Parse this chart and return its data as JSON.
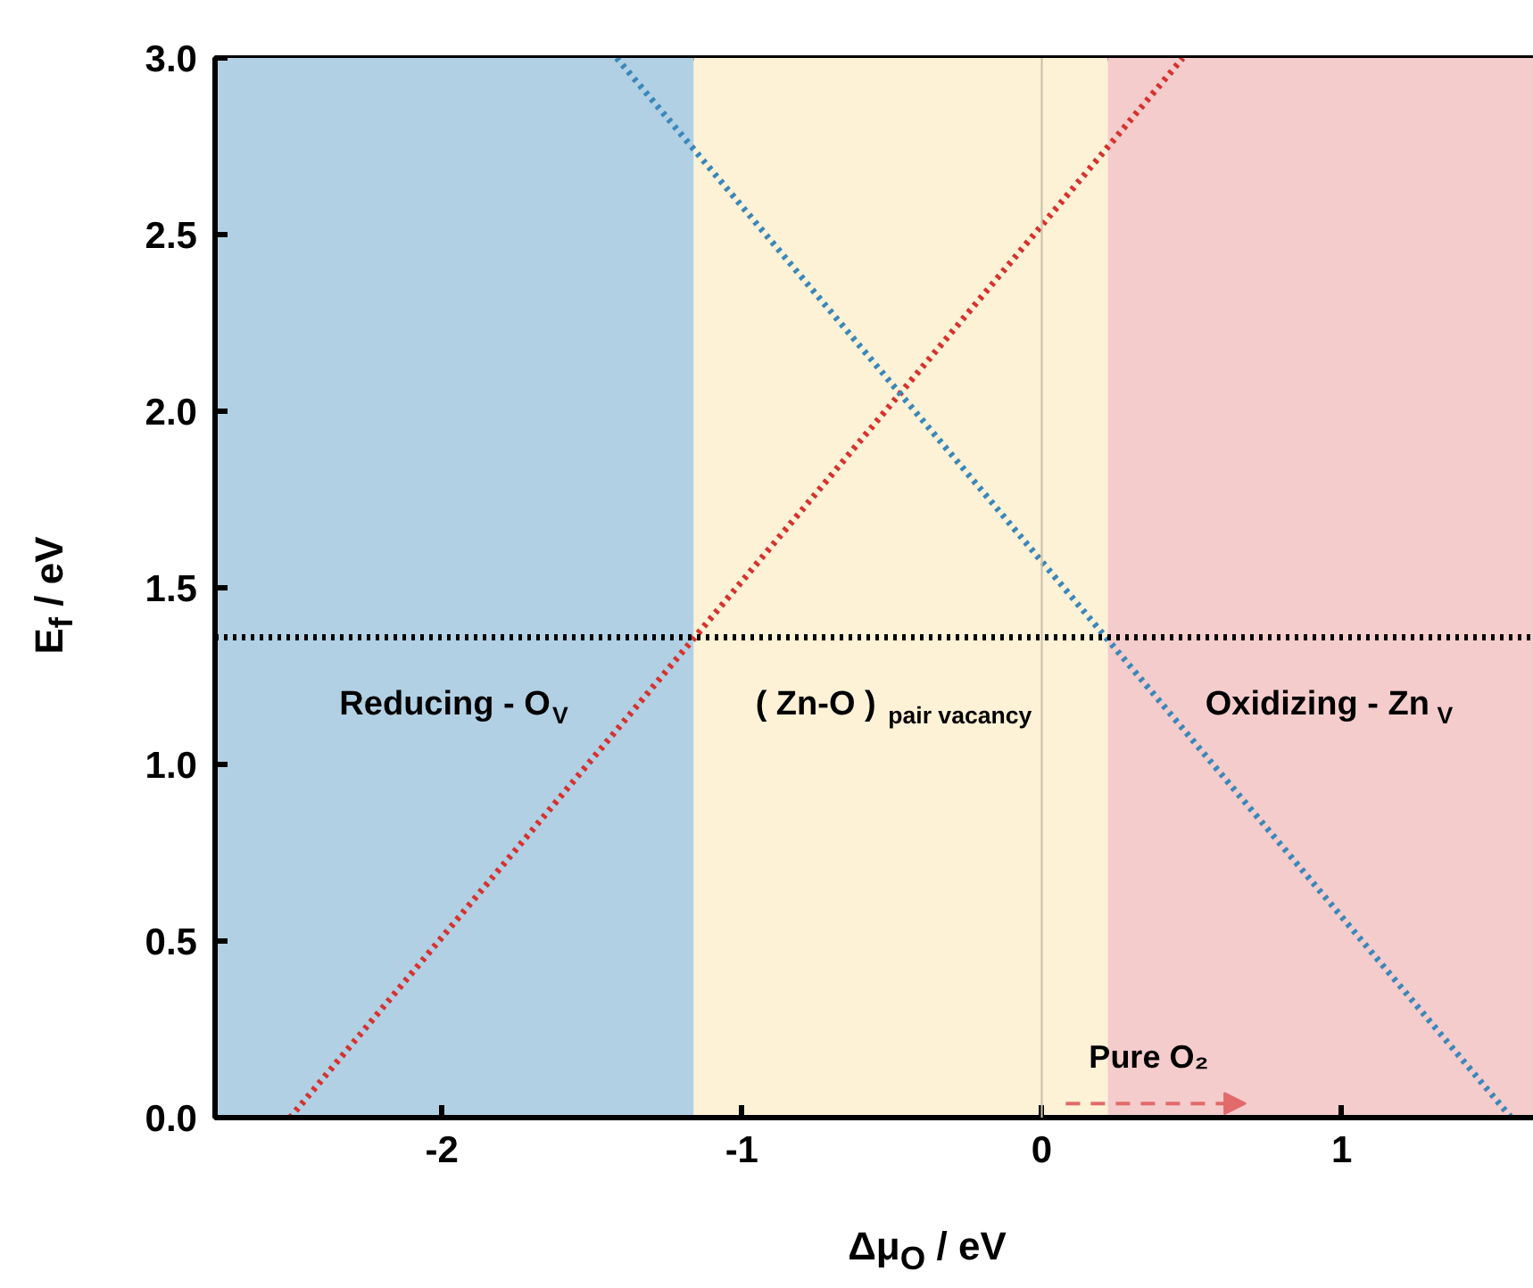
{
  "chart_data": {
    "type": "line",
    "xlabel": "Δμ$_{O}$ / eV",
    "ylabel": "E$_{f}$ / eV",
    "xlim": [
      -2.756,
      1.7
    ],
    "ylim": [
      0,
      3.0
    ],
    "xticks": [
      -2,
      -1,
      0,
      1
    ],
    "yticks": [
      {
        "value": 0,
        "label": "0.0"
      },
      {
        "value": 0.5,
        "label": "0.5"
      },
      {
        "value": 1,
        "label": "1.0"
      },
      {
        "value": 1.5,
        "label": "1.5"
      },
      {
        "value": 2,
        "label": "2.0"
      },
      {
        "value": 2.5,
        "label": "2.5"
      },
      {
        "value": 3,
        "label": "3.0"
      }
    ],
    "line_style": "dotted",
    "series": [
      {
        "color": "#d6322e",
        "x": [
          -2.506,
          0.47
        ],
        "values": [
          0,
          3.0
        ]
      },
      {
        "color": "#3a87b9",
        "x": [
          -1.417,
          1.565
        ],
        "values": [
          3.0,
          0
        ]
      }
    ],
    "bands": [
      {
        "axis": "x",
        "from": -2.756,
        "to": -1.16,
        "label": "Reducing - O$_{V}$",
        "color": "#b1d0e4"
      },
      {
        "axis": "x",
        "from": -1.16,
        "to": 0.22,
        "label": "( Zn-O ) $_{pair vacancy}$",
        "color": "#fdf1d6"
      },
      {
        "axis": "x",
        "from": 0.22,
        "to": 1.7,
        "label": "Oxidizing - Zn$_{V}$",
        "color": "#f4cccb"
      }
    ],
    "ref_lines": [
      {
        "axis": "y",
        "value": 1.36,
        "color": "#000000",
        "line_style": "dotted"
      },
      {
        "axis": "x",
        "value": 0,
        "color": "#c8c0a8",
        "line_style": "solid"
      }
    ],
    "annotations": [
      {
        "text": "Pure O₂",
        "x": 0,
        "y": 0.04
      }
    ]
  }
}
